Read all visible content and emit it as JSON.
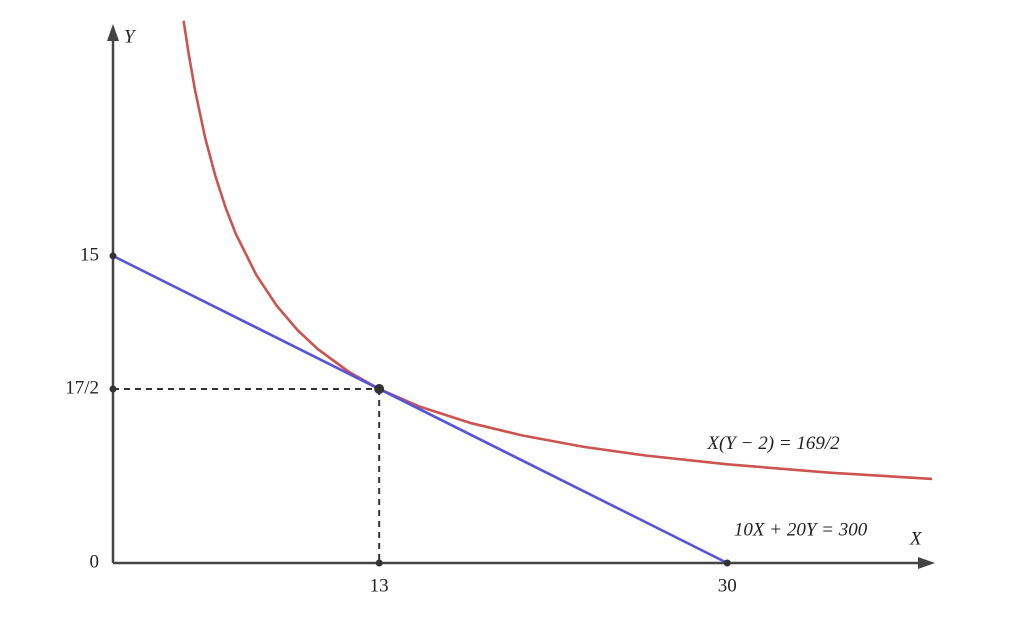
{
  "chart_data": {
    "type": "line",
    "x_label": "X",
    "y_label": "Y",
    "xlim": [
      0,
      40
    ],
    "ylim": [
      0,
      26.5
    ],
    "xticks": [
      13,
      30
    ],
    "yticks": [
      0,
      {
        "value": 8.5,
        "label": "17/2"
      },
      15
    ],
    "series": [
      {
        "name": "X(Y − 2) = 169/2",
        "color": "#cc5450",
        "x": [
          3.45,
          3.7,
          4,
          4.5,
          5,
          5.5,
          6,
          7,
          8,
          9,
          10,
          11.5,
          13,
          15,
          17.5,
          20,
          23,
          26,
          30,
          35,
          40
        ],
        "values": [
          26.49,
          24.84,
          23.13,
          20.78,
          18.9,
          17.36,
          16.08,
          14.07,
          12.56,
          11.39,
          10.45,
          9.35,
          8.5,
          7.63,
          6.83,
          6.23,
          5.67,
          5.25,
          4.82,
          4.41,
          4.11
        ]
      },
      {
        "name": "10X + 20Y = 300",
        "color": "#5454dc",
        "x": [
          0,
          30
        ],
        "values": [
          15,
          0
        ]
      }
    ],
    "tangent_point": {
      "x": 13,
      "y": 8.5
    }
  }
}
